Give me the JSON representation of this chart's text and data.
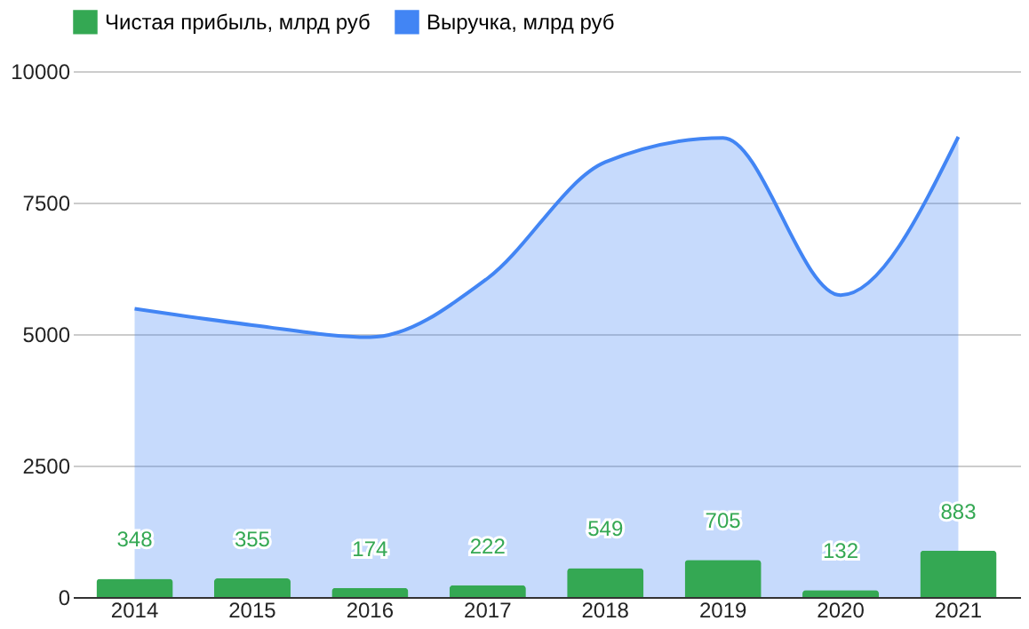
{
  "chart_data": {
    "type": "bar",
    "categories": [
      "2014",
      "2015",
      "2016",
      "2017",
      "2018",
      "2019",
      "2020",
      "2021"
    ],
    "series": [
      {
        "name": "Чистая прибыль, млрд руб",
        "color": "#34a853",
        "values": [
          348,
          355,
          174,
          222,
          549,
          705,
          132,
          883
        ],
        "data_labels": true
      },
      {
        "name": "Выручка, млрд руб",
        "color": "#4285f4",
        "type": "area",
        "values": [
          5480,
          5170,
          4940,
          6060,
          8270,
          8730,
          5740,
          8750
        ]
      }
    ],
    "ylim": [
      0,
      10000
    ],
    "yticks": [
      0,
      2500,
      5000,
      7500,
      10000
    ],
    "grid": "y",
    "legend": "top"
  }
}
